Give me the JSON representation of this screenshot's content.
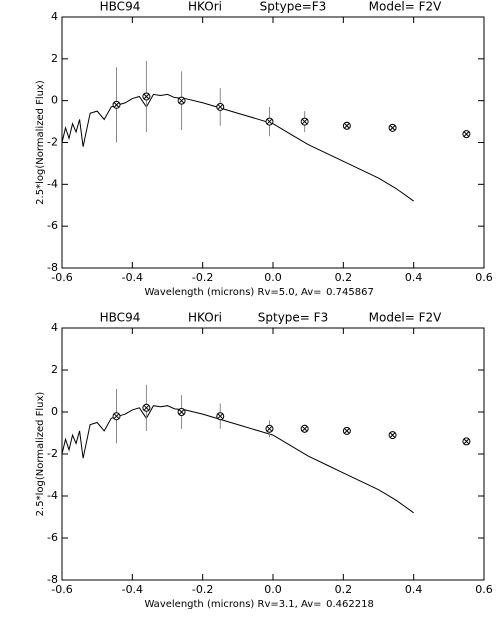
{
  "chart_data": [
    {
      "type": "scatter",
      "annotations": [
        "HBC94",
        "HKOri",
        "Sptype=F3",
        "Model= F2V"
      ],
      "x_label": "Wavelength (microns) Rv=5.0, Av=",
      "av": "0.745867",
      "y_label": "2.5*log(Normalized Flux)",
      "xlim": [
        -0.6,
        0.6
      ],
      "xticks": [
        -0.6,
        -0.4,
        -0.2,
        {
          "value": 0,
          "label": "0.0"
        },
        0.2,
        0.4,
        0.6
      ],
      "ylim": [
        -8,
        4
      ],
      "yticks": [
        -8,
        -6,
        -4,
        -2,
        0,
        2,
        4
      ],
      "color": "#000000",
      "spectrum": {
        "x": [
          -0.6,
          -0.59,
          -0.58,
          -0.57,
          -0.56,
          -0.55,
          -0.54,
          -0.52,
          -0.5,
          -0.48,
          -0.46,
          -0.44,
          -0.42,
          -0.4,
          -0.38,
          -0.36,
          -0.34,
          -0.32,
          -0.3,
          -0.28,
          -0.25,
          -0.2,
          -0.15,
          -0.1,
          -0.05,
          0.0,
          0.05,
          0.1,
          0.15,
          0.2,
          0.25,
          0.3,
          0.35,
          0.4
        ],
        "y": [
          -2.0,
          -1.3,
          -1.8,
          -1.1,
          -1.5,
          -0.9,
          -2.2,
          -0.6,
          -0.5,
          -0.9,
          -0.3,
          -0.2,
          -0.1,
          0.1,
          0.2,
          -0.3,
          0.3,
          0.25,
          0.3,
          0.15,
          0.1,
          -0.1,
          -0.35,
          -0.6,
          -0.85,
          -1.1,
          -1.6,
          -2.1,
          -2.5,
          -2.9,
          -3.3,
          -3.7,
          -4.2,
          -4.8
        ]
      },
      "points": {
        "x": [
          -0.445,
          -0.36,
          -0.26,
          -0.15,
          -0.01,
          0.09,
          0.21,
          0.34,
          0.55
        ],
        "y": [
          -0.2,
          0.2,
          0.0,
          -0.3,
          -1.0,
          -1.0,
          -1.2,
          -1.3,
          -1.6
        ],
        "err": [
          1.8,
          1.7,
          1.4,
          0.9,
          0.7,
          0.5,
          0.2,
          0.1,
          0.1
        ]
      }
    },
    {
      "type": "scatter",
      "annotations": [
        "HBC94",
        "HKOri",
        "Sptype= F3",
        "Model= F2V"
      ],
      "x_label": "Wavelength (microns) Rv=3.1, Av=",
      "av": "0.462218",
      "y_label": "2.5*log(Normalized Flux)",
      "xlim": [
        -0.6,
        0.6
      ],
      "xticks": [
        -0.6,
        -0.4,
        -0.2,
        {
          "value": 0,
          "label": "0.0"
        },
        0.2,
        0.4,
        0.6
      ],
      "ylim": [
        -8,
        4
      ],
      "yticks": [
        -8,
        -6,
        -4,
        -2,
        0,
        2,
        4
      ],
      "color": "#000000",
      "spectrum": {
        "x": [
          -0.6,
          -0.59,
          -0.58,
          -0.57,
          -0.56,
          -0.55,
          -0.54,
          -0.52,
          -0.5,
          -0.48,
          -0.46,
          -0.44,
          -0.42,
          -0.4,
          -0.38,
          -0.36,
          -0.34,
          -0.32,
          -0.3,
          -0.28,
          -0.25,
          -0.2,
          -0.15,
          -0.1,
          -0.05,
          0.0,
          0.05,
          0.1,
          0.15,
          0.2,
          0.25,
          0.3,
          0.35,
          0.4
        ],
        "y": [
          -2.0,
          -1.3,
          -1.8,
          -1.1,
          -1.5,
          -0.9,
          -2.2,
          -0.6,
          -0.5,
          -0.9,
          -0.3,
          -0.2,
          -0.1,
          0.1,
          0.2,
          -0.3,
          0.3,
          0.25,
          0.3,
          0.15,
          0.1,
          -0.1,
          -0.35,
          -0.6,
          -0.85,
          -1.1,
          -1.6,
          -2.1,
          -2.5,
          -2.9,
          -3.3,
          -3.7,
          -4.2,
          -4.8
        ]
      },
      "points": {
        "x": [
          -0.445,
          -0.36,
          -0.26,
          -0.15,
          -0.01,
          0.09,
          0.21,
          0.34,
          0.55
        ],
        "y": [
          -0.2,
          0.2,
          0.0,
          -0.2,
          -0.8,
          -0.8,
          -0.9,
          -1.1,
          -1.4
        ],
        "err": [
          1.3,
          1.1,
          0.8,
          0.6,
          0.4,
          0.2,
          0.1,
          0.1,
          0.1
        ]
      }
    }
  ]
}
